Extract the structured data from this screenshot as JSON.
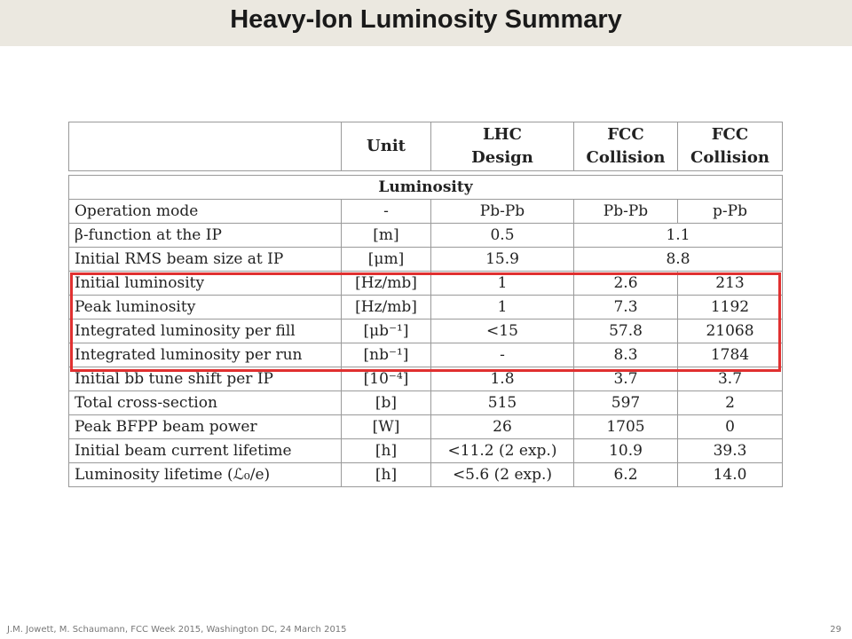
{
  "title": "Heavy-Ion Luminosity Summary",
  "table": {
    "header": [
      "",
      "Unit",
      "LHC\nDesign",
      "FCC\nCollision",
      "FCC\nCollision"
    ],
    "section": "Luminosity",
    "rows": [
      [
        "Operation mode",
        "-",
        "Pb-Pb",
        "Pb-Pb",
        "p-Pb"
      ],
      [
        "β-function at the IP",
        "[m]",
        "0.5",
        "1.1",
        ""
      ],
      [
        "Initial RMS beam size at IP",
        "[μm]",
        "15.9",
        "8.8",
        ""
      ],
      [
        "Initial luminosity",
        "[Hz/mb]",
        "1",
        "2.6",
        "213"
      ],
      [
        "Peak luminosity",
        "[Hz/mb]",
        "1",
        "7.3",
        "1192"
      ],
      [
        "Integrated luminosity per fill",
        "[μb⁻¹]",
        "<15",
        "57.8",
        "21068"
      ],
      [
        "Integrated luminosity per run",
        "[nb⁻¹]",
        "-",
        "8.3",
        "1784"
      ],
      [
        "Initial bb tune shift per IP",
        "[10⁻⁴]",
        "1.8",
        "3.7",
        "3.7"
      ],
      [
        "Total cross-section",
        "[b]",
        "515",
        "597",
        "2"
      ],
      [
        "Peak BFPP beam power",
        "[W]",
        "26",
        "1705",
        "0"
      ],
      [
        "Initial beam current lifetime",
        "[h]",
        "<11.2 (2 exp.)",
        "10.9",
        "39.3"
      ],
      [
        "Luminosity lifetime (ℒ₀/e)",
        "[h]",
        "<5.6 (2 exp.)",
        "6.2",
        "14.0"
      ]
    ]
  },
  "footer": "J.M. Jowett, M. Schaumann, FCC Week 2015, Washington DC, 24 March 2015",
  "page_number": "29",
  "colors": {
    "highlight": "#e03030",
    "title_band": "#ebe8e0"
  }
}
